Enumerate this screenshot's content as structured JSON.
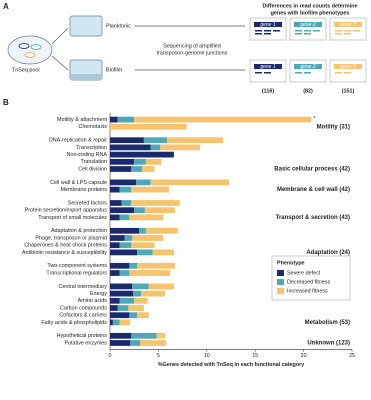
{
  "panel_a": {
    "label": "A",
    "pool": "TnSeq pool",
    "planktonic": "Planktonic",
    "biofilm": "Biofilm",
    "sequencing": [
      "Sequencing of amplified",
      "transposon-genome junctions"
    ],
    "header": [
      "Differences in read counts determine",
      "genes with biofilm phenotypes"
    ],
    "genes": [
      "gene 1",
      "gene 2",
      "gene 3"
    ],
    "counts": [
      "(116)",
      "(82)",
      "(151)"
    ]
  },
  "chart_data": {
    "type": "stacked-hbar",
    "panel_label": "B",
    "x_label": "%Genes detected with TnSeq in each functional category",
    "groups": [
      {
        "label": "Motility (31)",
        "categories": [
          "Motility & attachment",
          "Chemotaxis"
        ]
      },
      {
        "label": "Basic cellular process (42)",
        "categories": [
          "DNA-replication & repair",
          "Transcription",
          "Non-coding RNA",
          "Translation",
          "Cell division"
        ]
      },
      {
        "label": "Membrane & cell wall (42)",
        "categories": [
          "Cell wall & LPS capsule",
          "Membrane proteins"
        ]
      },
      {
        "label": "Transport & secretion (43)",
        "categories": [
          "Secreted factors",
          "Protein secretion/export apparatus",
          "Transport of small molecules"
        ]
      },
      {
        "label": "Adaptation (24)",
        "categories": [
          "Adaptation & protection",
          "Phage, transposon or plasmid",
          "Chaperones & heat shock proteins",
          "Antibiotic resistance & susceptibility"
        ]
      },
      {
        "label": "Regulation (39)",
        "categories": [
          "Two-component systems",
          "Transcriptional regulators"
        ]
      },
      {
        "label": "Metabolism (53)",
        "categories": [
          "Central intermediary",
          "Energy",
          "Amino acids",
          "Carbon compounds",
          "Cofactors & carriers",
          "Fatty acids & phospholipids"
        ]
      },
      {
        "label": "Unknown (123)",
        "categories": [
          "Hypothetical proteins",
          "Putative enzymes"
        ]
      }
    ],
    "series": [
      {
        "name": "Severe defect",
        "color": "#1b2a6b",
        "values": [
          0.8,
          0,
          3.5,
          4.2,
          6.6,
          2.5,
          2.2,
          2.7,
          1.0,
          1.2,
          2.5,
          1.0,
          3.0,
          1.5,
          1.0,
          2.8,
          2.0,
          1.0,
          2.3,
          2.4,
          1.0,
          0.8,
          2.0,
          0.3,
          2.2,
          2.1
        ]
      },
      {
        "name": "Decreased fitness",
        "color": "#4ea8b8",
        "values": [
          1.7,
          0,
          2.4,
          1.0,
          0,
          1.2,
          1.1,
          1.5,
          1.2,
          1.0,
          1.1,
          1.0,
          0.7,
          0.8,
          1.2,
          1.6,
          0.8,
          1.0,
          1.7,
          0.8,
          1.5,
          1.1,
          0.8,
          0.7,
          2.6,
          1.0
        ]
      },
      {
        "name": "Increased fitness",
        "color": "#f6c46c",
        "values": [
          18.3,
          7.9,
          5.8,
          4.1,
          0,
          1.6,
          1.3,
          8.1,
          3.9,
          5.0,
          3.1,
          3.5,
          3.3,
          3.2,
          2.4,
          2.2,
          3.9,
          4.2,
          2.6,
          2.5,
          1.4,
          1.6,
          1.2,
          1.1,
          0.9,
          2.7
        ]
      }
    ],
    "annotation": "*",
    "legend_title": "Phenotype",
    "xlim": [
      0,
      25
    ],
    "xticks": [
      0,
      5,
      10,
      15,
      20,
      25
    ]
  }
}
